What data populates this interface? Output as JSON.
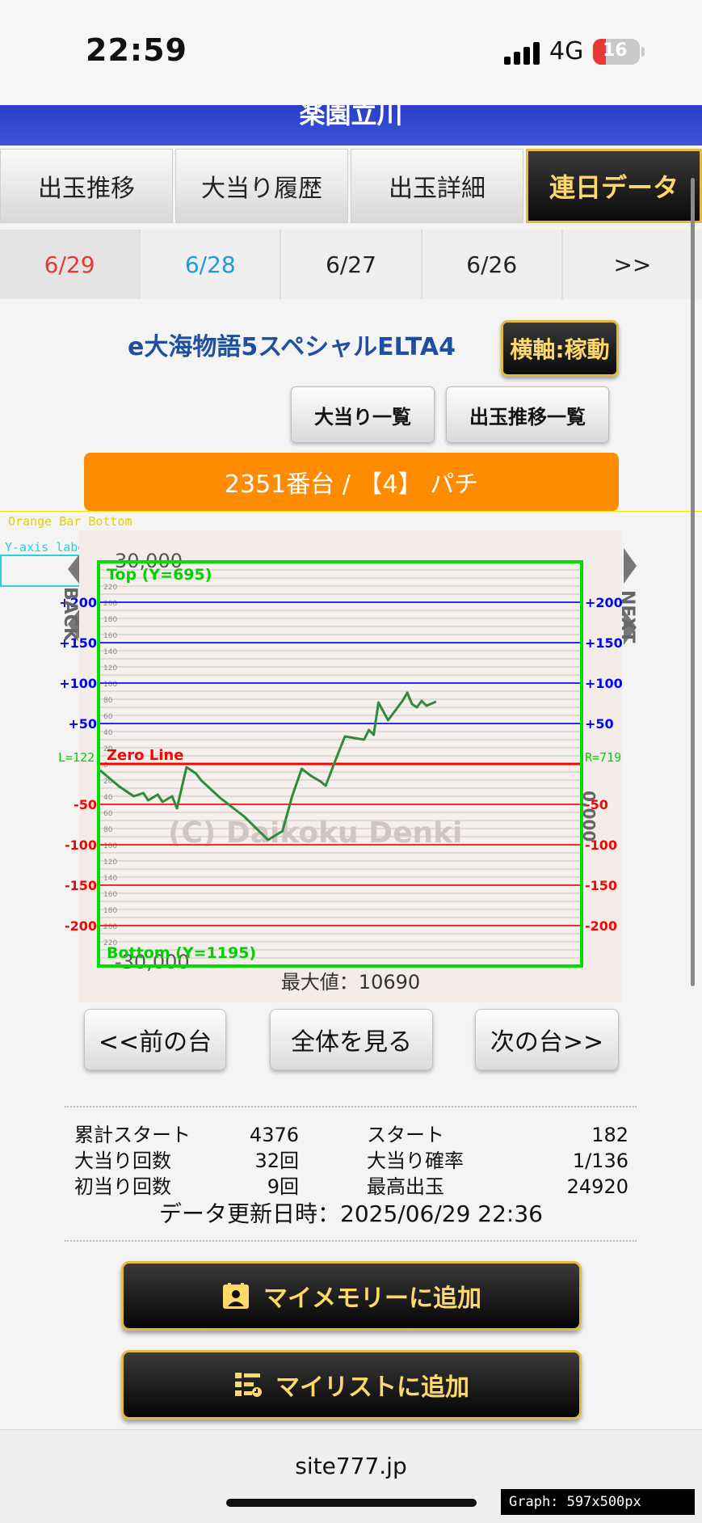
{
  "status_bar": {
    "time": "22:59",
    "network": "4G",
    "battery_level": "16"
  },
  "header": {
    "hall_name": "楽園立川"
  },
  "tabs": [
    {
      "label": "出玉推移",
      "active": false
    },
    {
      "label": "大当り履歴",
      "active": false
    },
    {
      "label": "出玉詳細",
      "active": false
    },
    {
      "label": "連日データ",
      "active": true
    }
  ],
  "date_tabs": [
    "6/29",
    "6/28",
    "6/27",
    "6/26",
    ">>"
  ],
  "machine": {
    "name": "e大海物語5スペシャルELTA4",
    "axis_button": "横軸:稼動",
    "jackpot_list_button": "大当り一覧",
    "payout_list_button": "出玉推移一覧",
    "unit_label": "2351番台 / 【4】 パチ"
  },
  "debug": {
    "orange_bar_bottom": "Orange Bar Bottom",
    "y_axis_labels": "Y-axis labels",
    "top_label": "Top (Y=695)",
    "bottom_label": "Bottom (Y=1195)",
    "zero_line": "Zero Line",
    "left_label": "L=122",
    "right_label": "R=719",
    "graph_size": "Graph: 597x500px"
  },
  "graph": {
    "left_arrow_text": "BACK",
    "right_arrow_text": "NEXT",
    "watermark": "(C) Daikoku Denki",
    "max_value_text": "最大値：10690",
    "top_value_text": "30,000",
    "bottom_value_text": "-30,000",
    "right_side_text": "0,000",
    "left_scale": [
      "220",
      "200",
      "180",
      "160",
      "140",
      "120",
      "100",
      "80",
      "60",
      "40",
      "20",
      "0",
      "20",
      "40",
      "60",
      "80",
      "100",
      "120",
      "140",
      "160",
      "180",
      "200",
      "220"
    ]
  },
  "chart_data": {
    "type": "line",
    "title": "",
    "xlabel": "",
    "ylabel": "",
    "ylim": [
      -250,
      250
    ],
    "xlim": [
      0,
      100
    ],
    "y_ticks_positive": [
      "+200",
      "+150",
      "+100",
      "+50"
    ],
    "y_ticks_negative": [
      "-50",
      "-100",
      "-150",
      "-200"
    ],
    "y_tick_values_positive": [
      200,
      150,
      100,
      50
    ],
    "y_tick_values_negative": [
      -50,
      -100,
      -150,
      -200
    ],
    "series": [
      {
        "color": "#2e8b3a",
        "x": [
          0,
          4,
          7,
          9,
          10,
          12,
          13,
          15,
          16,
          18,
          20,
          21,
          25,
          30,
          35,
          38,
          40,
          42,
          44,
          46,
          47,
          49,
          51,
          55,
          56,
          57,
          58,
          60,
          61,
          63,
          64,
          65,
          66,
          67,
          68,
          70
        ],
        "y": [
          -8,
          -28,
          -40,
          -36,
          -45,
          -38,
          -47,
          -40,
          -55,
          -4,
          -12,
          -20,
          -42,
          -65,
          -94,
          -83,
          -40,
          -6,
          -15,
          -22,
          -27,
          4,
          34,
          30,
          42,
          36,
          76,
          54,
          62,
          78,
          88,
          74,
          70,
          78,
          72,
          77
        ]
      }
    ]
  },
  "nav_buttons": {
    "prev": "<<前の台",
    "all": "全体を見る",
    "next": "次の台>>"
  },
  "stats": [
    {
      "label": "累計スタート",
      "value": "4376",
      "label2": "スタート",
      "value2": "182"
    },
    {
      "label": "大当り回数",
      "value": "32回",
      "label2": "大当り確率",
      "value2": "1/136"
    },
    {
      "label": "初当り回数",
      "value": "9回",
      "label2": "最高出玉",
      "value2": "24920"
    }
  ],
  "updated_text": "データ更新日時：2025/06/29 22:36",
  "actions": {
    "memory": "マイメモリーに追加",
    "mylist": "マイリストに追加"
  },
  "footer": {
    "url": "site777.jp"
  },
  "colors": {
    "accent_gold": "#e6b93e",
    "orange": "#ff8c00",
    "blue": "#2a3ec9",
    "plus": "#0000ff",
    "minus": "#ff0000",
    "frame": "#00e000"
  }
}
